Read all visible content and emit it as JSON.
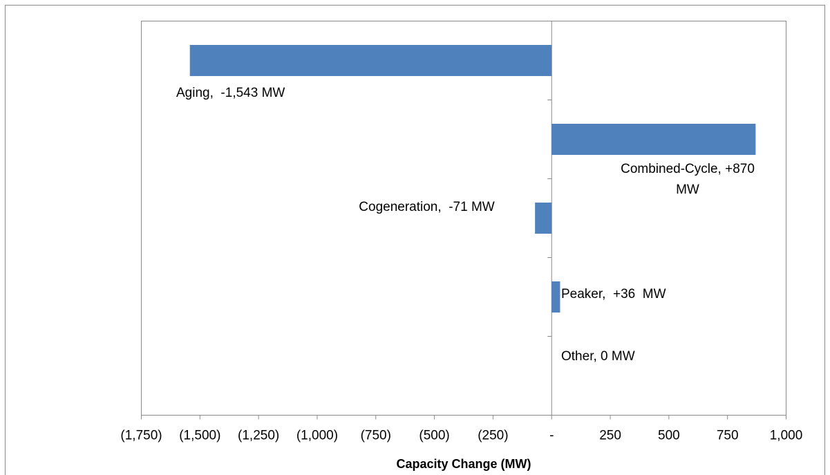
{
  "chart_data": {
    "type": "barh",
    "values": [
      -1543,
      870,
      -71,
      36,
      0
    ],
    "value_labels": [
      "Aging,  -1,543 MW",
      "Combined-Cycle, +870 MW",
      "Cogeneration,  -71 MW",
      "Peaker,  +36  MW",
      "Other, 0 MW"
    ],
    "color": "#4f81bd",
    "xlabel": "Capacity Change (MW)",
    "xlim": [
      -1750,
      1000
    ],
    "xticks": [
      {
        "value": -1750,
        "label": "(1,750)"
      },
      {
        "value": -1500,
        "label": "(1,500)"
      },
      {
        "value": -1250,
        "label": "(1,250)"
      },
      {
        "value": -1000,
        "label": "(1,000)"
      },
      {
        "value": -750,
        "label": "(750)"
      },
      {
        "value": -500,
        "label": "(500)"
      },
      {
        "value": -250,
        "label": "(250)"
      },
      {
        "value": 0,
        "label": "-"
      },
      250,
      500,
      750,
      {
        "value": 1000,
        "label": "1,000"
      }
    ],
    "grid": false
  }
}
